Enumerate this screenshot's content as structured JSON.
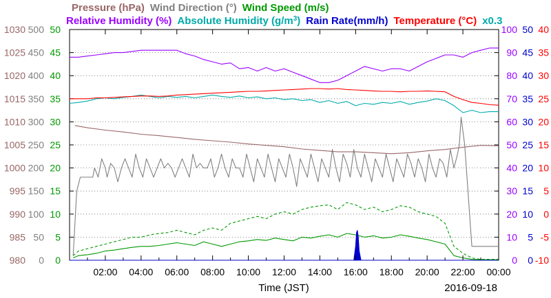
{
  "chart_data": {
    "type": "line",
    "legend_row1": [
      {
        "text": "Pressure (hPa)",
        "color": "#996666"
      },
      {
        "text": "Wind Direction (°)",
        "color": "#808080"
      },
      {
        "text": "Wind Speed (m/s)",
        "color": "#009900"
      }
    ],
    "legend_row2": [
      {
        "text": "Relative Humidity (%)",
        "color": "#9900ff"
      },
      {
        "text": "Absolute Humidity (g/m",
        "sup": "3",
        "tail": ")",
        "color": "#00aaaa"
      },
      {
        "text": "Rain Rate(mm/h)",
        "color": "#0000cc"
      },
      {
        "text": "Temperature (°C)",
        "color": "#ff0000"
      },
      {
        "text": "x0.3",
        "color": "#00aaaa"
      }
    ],
    "xlabel": "Time (JST)",
    "date": "2016-09-18",
    "x_ticks": [
      "02:00",
      "04:00",
      "06:00",
      "08:00",
      "10:00",
      "12:00",
      "14:00",
      "16:00",
      "18:00",
      "20:00",
      "22:00",
      "00:00"
    ],
    "x_range_hours": [
      0,
      24
    ],
    "left_axes": [
      {
        "name": "pressure",
        "color": "#996666",
        "ticks": [
          "980",
          "985",
          "990",
          "995",
          "1000",
          "1005",
          "1010",
          "1015",
          "1020",
          "1025",
          "1030"
        ]
      },
      {
        "name": "wind_direction",
        "color": "#808080",
        "ticks": [
          "0",
          "50",
          "100",
          "150",
          "200",
          "250",
          "300",
          "350",
          "400",
          "450",
          "500"
        ]
      },
      {
        "name": "wind_speed",
        "color": "#009900",
        "ticks": [
          "0",
          "5",
          "10",
          "15",
          "20",
          "25",
          "30",
          "35",
          "40",
          "45",
          "50"
        ]
      }
    ],
    "right_axes": [
      {
        "name": "relative_humidity",
        "color": "#9900ff",
        "ticks": [
          "0",
          "10",
          "20",
          "30",
          "40",
          "50",
          "60",
          "70",
          "80",
          "90",
          "100"
        ]
      },
      {
        "name": "rain_rate",
        "color": "#0000cc",
        "ticks": [
          "0",
          "5",
          "10",
          "15",
          "20",
          "25",
          "30",
          "35",
          "40",
          "45",
          "50"
        ]
      },
      {
        "name": "temperature",
        "color": "#ff0000",
        "ticks": [
          "-10",
          "-5",
          "0",
          "5",
          "10",
          "15",
          "20",
          "25",
          "30",
          "35",
          "40"
        ]
      }
    ],
    "series": [
      {
        "name": "Pressure (hPa)",
        "axis": "pressure",
        "color": "#996666",
        "style": "solid",
        "x": [
          0.3,
          1,
          2,
          3,
          4,
          5,
          6,
          7,
          8,
          9,
          10,
          11,
          12,
          13,
          14,
          15,
          16,
          17,
          18,
          19,
          20,
          21,
          22,
          23,
          24
        ],
        "y": [
          1009.2,
          1008.7,
          1008.2,
          1007.8,
          1007.3,
          1007.0,
          1006.6,
          1006.2,
          1005.9,
          1005.6,
          1005.2,
          1004.9,
          1004.6,
          1004.1,
          1003.8,
          1003.5,
          1003.5,
          1003.3,
          1003.1,
          1003.3,
          1003.7,
          1004.0,
          1004.5,
          1004.9,
          1004.8
        ]
      },
      {
        "name": "Wind Direction (°)",
        "axis": "wind_direction",
        "color": "#808080",
        "style": "solid",
        "x": [
          0.2,
          0.4,
          0.6,
          0.9,
          1.3,
          1.4,
          1.6,
          1.8,
          2.0,
          2.1,
          2.3,
          2.5,
          2.7,
          2.9,
          3.1,
          3.3,
          3.5,
          3.7,
          3.9,
          4.1,
          4.3,
          4.5,
          4.7,
          4.9,
          5.1,
          5.3,
          5.5,
          5.7,
          5.9,
          6.1,
          6.3,
          6.5,
          6.7,
          6.9,
          7.1,
          7.3,
          7.5,
          7.7,
          7.9,
          8.1,
          8.3,
          8.5,
          8.7,
          8.9,
          9.1,
          9.3,
          9.5,
          9.7,
          9.9,
          10.1,
          10.3,
          10.5,
          10.7,
          10.9,
          11.1,
          11.3,
          11.5,
          11.7,
          11.9,
          12.1,
          12.3,
          12.5,
          12.7,
          12.9,
          13.1,
          13.3,
          13.5,
          13.7,
          13.9,
          14.1,
          14.3,
          14.5,
          14.7,
          14.9,
          15.1,
          15.3,
          15.5,
          15.7,
          15.9,
          16.1,
          16.3,
          16.5,
          16.7,
          16.9,
          17.1,
          17.3,
          17.5,
          17.7,
          17.9,
          18.1,
          18.3,
          18.5,
          18.7,
          18.9,
          19.1,
          19.3,
          19.5,
          19.7,
          19.9,
          20.1,
          20.3,
          20.5,
          20.7,
          20.9,
          21.1,
          21.3,
          21.5,
          21.7,
          21.8,
          21.9,
          22.1,
          22.5,
          23,
          24
        ],
        "y": [
          10,
          150,
          180,
          180,
          180,
          200,
          180,
          220,
          200,
          180,
          210,
          200,
          170,
          200,
          220,
          200,
          180,
          230,
          200,
          180,
          220,
          200,
          180,
          200,
          220,
          200,
          210,
          200,
          180,
          200,
          220,
          200,
          180,
          230,
          200,
          210,
          200,
          200,
          220,
          180,
          200,
          230,
          200,
          180,
          220,
          200,
          200,
          180,
          230,
          200,
          170,
          220,
          200,
          180,
          230,
          200,
          170,
          220,
          200,
          180,
          230,
          200,
          160,
          220,
          200,
          180,
          230,
          200,
          170,
          220,
          200,
          180,
          240,
          200,
          170,
          230,
          210,
          180,
          240,
          200,
          180,
          230,
          200,
          170,
          220,
          200,
          180,
          230,
          200,
          170,
          220,
          200,
          180,
          230,
          210,
          180,
          220,
          200,
          170,
          230,
          200,
          180,
          220,
          210,
          180,
          240,
          200,
          230,
          250,
          310,
          250,
          30,
          30,
          30
        ]
      },
      {
        "name": "Wind Speed (m/s)",
        "axis": "wind_speed",
        "color": "#009900",
        "style": "solid",
        "x": [
          0.2,
          0.5,
          1,
          1.5,
          2,
          2.5,
          3,
          3.5,
          4,
          4.5,
          5,
          5.5,
          6,
          6.5,
          7,
          7.5,
          8,
          8.5,
          9,
          9.5,
          10,
          10.5,
          11,
          11.5,
          12,
          12.5,
          13,
          13.5,
          14,
          14.5,
          15,
          15.5,
          16,
          16.5,
          17,
          17.5,
          18,
          18.5,
          19,
          19.5,
          20,
          20.5,
          21,
          21.5,
          22,
          22.5,
          23,
          24
        ],
        "y": [
          0.5,
          1,
          1.2,
          1.5,
          2,
          2.2,
          2.5,
          2.8,
          3,
          3,
          3.2,
          3.5,
          3.8,
          3.5,
          3.2,
          4,
          3.5,
          3,
          3.5,
          4,
          4.2,
          4.5,
          4.3,
          4.8,
          4.5,
          4.2,
          5,
          4.8,
          5.2,
          5.5,
          5,
          5.8,
          5.5,
          5,
          5.3,
          4.8,
          5,
          5.5,
          5.2,
          4.8,
          4.5,
          4,
          3.5,
          1,
          0.5,
          0.2,
          0.1,
          0.1
        ]
      },
      {
        "name": "Wind Speed gust (m/s)",
        "axis": "wind_speed",
        "color": "#009900",
        "style": "dashed",
        "x": [
          0.2,
          0.5,
          1,
          1.5,
          2,
          2.5,
          3,
          3.5,
          4,
          4.5,
          5,
          5.5,
          6,
          6.5,
          7,
          7.5,
          8,
          8.5,
          9,
          9.5,
          10,
          10.5,
          11,
          11.5,
          12,
          12.5,
          13,
          13.5,
          14,
          14.5,
          15,
          15.5,
          16,
          16.5,
          17,
          17.5,
          18,
          18.5,
          19,
          19.5,
          20,
          20.5,
          21,
          21.5,
          22,
          22.5,
          23,
          24
        ],
        "y": [
          1,
          2,
          2.5,
          3,
          3.5,
          4,
          4.5,
          5,
          5,
          5.5,
          5.8,
          6,
          6.5,
          6,
          5.5,
          6.5,
          7,
          6.5,
          8,
          8.5,
          9,
          9.5,
          9,
          10,
          10.5,
          10,
          11,
          11.5,
          11.8,
          12,
          11,
          12.5,
          12,
          11,
          11.5,
          10.5,
          11,
          11.8,
          11.5,
          10.5,
          10,
          9.5,
          8,
          3,
          1.5,
          0.5,
          0.2,
          0.2
        ]
      },
      {
        "name": "Relative Humidity (%)",
        "axis": "relative_humidity",
        "color": "#9900ff",
        "style": "solid",
        "x": [
          0,
          0.5,
          1,
          1.5,
          2,
          2.5,
          3,
          3.5,
          4,
          4.5,
          5,
          5.5,
          6,
          6.5,
          7,
          7.5,
          8,
          8.5,
          9,
          9.5,
          10,
          10.5,
          11,
          11.5,
          12,
          12.5,
          13,
          13.5,
          14,
          14.5,
          15,
          15.5,
          16,
          16.5,
          17,
          17.5,
          18,
          18.5,
          19,
          19.5,
          20,
          20.5,
          21,
          21.5,
          22,
          22.5,
          23,
          23.5,
          24
        ],
        "y": [
          88,
          88,
          88.5,
          89,
          89.5,
          90,
          90,
          90.5,
          91,
          91,
          91,
          91,
          91,
          89.5,
          88.5,
          87,
          86,
          85,
          85.5,
          83,
          83.5,
          82,
          83.5,
          82,
          83,
          81.5,
          80,
          78.5,
          77,
          77,
          78,
          80,
          82,
          84,
          83,
          82,
          83,
          83,
          82,
          84,
          86,
          87.5,
          89,
          89,
          88,
          90,
          91,
          92,
          92
        ]
      },
      {
        "name": "Absolute Humidity (g/m3)",
        "axis": "temperature",
        "color": "#00aaaa",
        "style": "solid",
        "x": [
          0,
          0.5,
          1,
          1.5,
          2,
          2.5,
          3,
          3.5,
          4,
          4.5,
          5,
          5.5,
          6,
          6.5,
          7,
          7.5,
          8,
          8.5,
          9,
          9.5,
          10,
          10.5,
          11,
          11.5,
          12,
          12.5,
          13,
          13.5,
          14,
          14.5,
          15,
          15.5,
          16,
          16.5,
          17,
          17.5,
          18,
          18.5,
          19,
          19.5,
          20,
          20.5,
          21,
          21.5,
          22,
          22.5,
          23,
          23.5,
          24
        ],
        "y": [
          24,
          24.2,
          24.5,
          25,
          25.2,
          25,
          25.3,
          25.5,
          25.8,
          25.5,
          25.2,
          25.5,
          25.3,
          25.5,
          25.2,
          25.5,
          25.8,
          25.5,
          25.3,
          25.6,
          25.2,
          25.4,
          25,
          25.2,
          24.8,
          25,
          24.6,
          24.8,
          24.2,
          24.6,
          24,
          24.4,
          23.5,
          24,
          23.8,
          24.2,
          24,
          24.4,
          23.8,
          24.2,
          24.5,
          25,
          24.6,
          23.5,
          22,
          22.5,
          22,
          22.2,
          22.2
        ]
      },
      {
        "name": "Temperature (°C)",
        "axis": "temperature",
        "color": "#ff0000",
        "style": "solid",
        "x": [
          0,
          0.5,
          1,
          1.5,
          2,
          2.5,
          3,
          3.5,
          4,
          4.5,
          5,
          5.5,
          6,
          6.5,
          7,
          7.5,
          8,
          8.5,
          9,
          9.5,
          10,
          10.5,
          11,
          11.5,
          12,
          12.5,
          13,
          13.5,
          14,
          14.5,
          15,
          15.5,
          16,
          16.5,
          17,
          17.5,
          18,
          18.5,
          19,
          19.5,
          20,
          20.5,
          21,
          21.5,
          22,
          22.5,
          23,
          23.5,
          24
        ],
        "y": [
          25,
          25,
          25,
          25.2,
          25.2,
          25.3,
          25.4,
          25.5,
          25.6,
          25.6,
          25.5,
          25.6,
          25.8,
          25.9,
          26,
          26.1,
          26.2,
          26.3,
          26.4,
          26.5,
          26.6,
          26.6,
          26.7,
          26.8,
          26.9,
          27,
          27.1,
          27.2,
          27.2,
          27.1,
          27.2,
          27.0,
          26.9,
          26.8,
          26.7,
          26.6,
          26.6,
          26.5,
          26.6,
          26.6,
          26.7,
          26.6,
          26.5,
          25.5,
          24.8,
          24.2,
          24,
          23.7,
          23.6
        ]
      },
      {
        "name": "Rain Rate(mm/h)",
        "axis": "rain_rate",
        "color": "#0000cc",
        "style": "fill",
        "x": [
          0,
          15.9,
          16.0,
          16.05,
          16.1,
          16.15,
          16.2,
          16.3,
          24
        ],
        "y": [
          0,
          0,
          3,
          6,
          6.5,
          5,
          2,
          0,
          0
        ]
      }
    ]
  }
}
